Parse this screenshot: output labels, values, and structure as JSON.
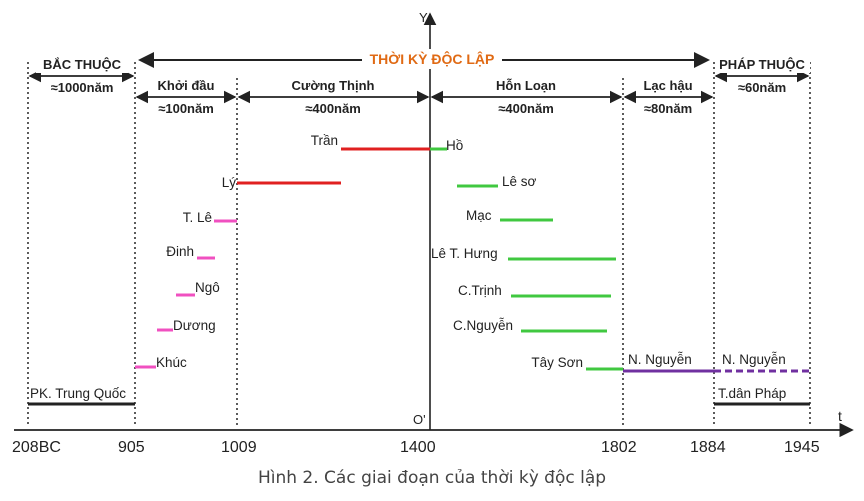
{
  "diagram": {
    "axis_y_label": "Y",
    "axis_t_label": "t",
    "origin_label": "O'",
    "caption": "Hình 2. Các giai đoạn của thời kỳ độc lập",
    "independence": {
      "label": "THỜI KỲ ĐỘC LẬP",
      "color": "#e06a14"
    },
    "periods": [
      {
        "name": "BẮC THUỘC",
        "duration": "≈1000năm"
      },
      {
        "name": "Khởi đầu",
        "duration": "≈100năm"
      },
      {
        "name": "Cường Thịnh",
        "duration": "≈400năm"
      },
      {
        "name": "Hỗn Loạn",
        "duration": "≈400năm"
      },
      {
        "name": "Lạc hậu",
        "duration": "≈80năm"
      },
      {
        "name": "PHÁP THUỘC",
        "duration": "≈60năm"
      }
    ],
    "ticks": [
      "208BC",
      "905",
      "1009",
      "1400",
      "1802",
      "1884",
      "1945"
    ],
    "dynasties": [
      {
        "label": "Trần",
        "color": "#e02020"
      },
      {
        "label": "Lý",
        "color": "#e02020"
      },
      {
        "label": "T. Lê",
        "color": "#f050c0"
      },
      {
        "label": "Đinh",
        "color": "#f050c0"
      },
      {
        "label": "Ngô",
        "color": "#f050c0"
      },
      {
        "label": "Dương",
        "color": "#f050c0"
      },
      {
        "label": "Khúc",
        "color": "#f050c0"
      },
      {
        "label": "Hồ",
        "color": "#40c840"
      },
      {
        "label": "Lê sơ",
        "color": "#40c840"
      },
      {
        "label": "Mạc",
        "color": "#40c840"
      },
      {
        "label": "Lê T. Hưng",
        "color": "#40c840"
      },
      {
        "label": "C.Trịnh",
        "color": "#40c840"
      },
      {
        "label": "C.Nguyễn",
        "color": "#40c840"
      },
      {
        "label": "Tây Sơn",
        "color": "#40c840"
      },
      {
        "label": "N. Nguyễn",
        "color": "#7030a0"
      },
      {
        "label": "N. Nguyễn",
        "color": "#7030a0"
      },
      {
        "label": "PK. Trung Quốc",
        "color": "#222222"
      },
      {
        "label": "T.dân Pháp",
        "color": "#222222"
      }
    ]
  }
}
